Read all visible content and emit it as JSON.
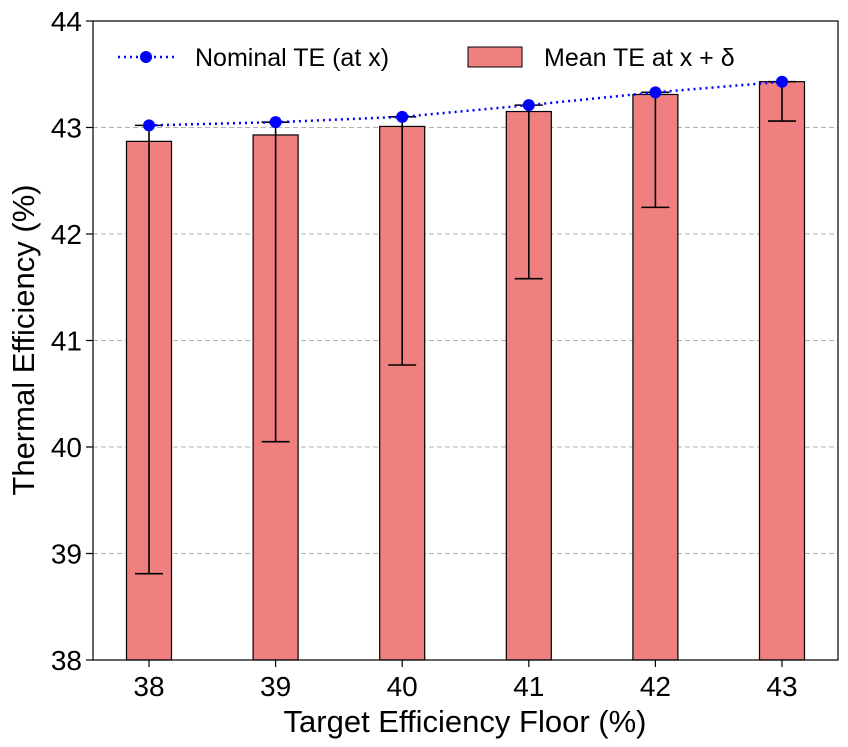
{
  "chart_data": {
    "type": "bar",
    "title": "",
    "xlabel": "Target Efficiency Floor (%)",
    "ylabel": "Thermal Efficiency (%)",
    "categories": [
      "38",
      "39",
      "40",
      "41",
      "42",
      "43"
    ],
    "ylim": [
      38,
      44
    ],
    "yticks": [
      "38",
      "39",
      "40",
      "41",
      "42",
      "43",
      "44"
    ],
    "grid": "y-dashed",
    "legend_position": "top",
    "series": [
      {
        "name": "Mean TE at x + δ",
        "kind": "bar",
        "color": "#F08080",
        "values": [
          42.87,
          42.93,
          43.01,
          43.15,
          43.31,
          43.43
        ],
        "error_low": [
          38.81,
          40.05,
          40.77,
          41.58,
          42.25,
          43.06
        ],
        "error_high": [
          43.02,
          43.05,
          43.1,
          43.21,
          43.33,
          43.43
        ]
      },
      {
        "name": "Nominal TE (at x)",
        "kind": "line",
        "color": "#0000FF",
        "style": "dotted",
        "values": [
          43.02,
          43.05,
          43.1,
          43.21,
          43.33,
          43.43
        ]
      }
    ]
  }
}
